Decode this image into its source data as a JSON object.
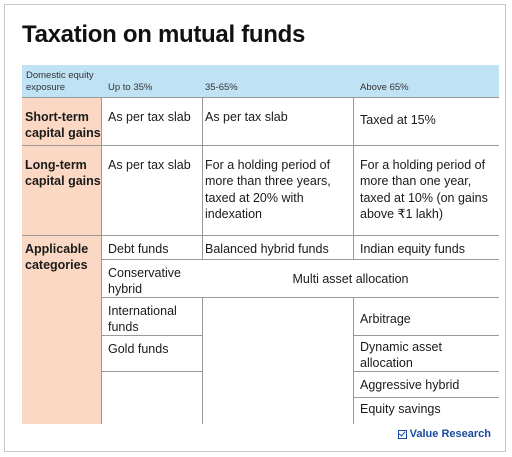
{
  "title": "Taxation on mutual funds",
  "header": {
    "col0": "Domestic equity exposure",
    "col1": "Up to 35%",
    "col2": "35-65%",
    "col3": "Above 65%"
  },
  "rows": {
    "short_term": {
      "label": "Short-term capital gains",
      "c1": "As per tax slab",
      "c2": "As per tax slab",
      "c3": "Taxed at 15%"
    },
    "long_term": {
      "label": "Long-term capital gains",
      "c1": "As per tax slab",
      "c2": "For a holding period of more than three years, taxed at 20% with indexation",
      "c3": "For a holding period of more than one year, taxed at 10% (on gains above ₹1 lakh)"
    },
    "categories": {
      "label": "Applicable categories",
      "debt": "Debt funds",
      "balanced": "Balanced hybrid funds",
      "indian_equity": "Indian equity funds",
      "conservative": "Conservative hybrid",
      "multi_asset": "Multi asset allocation",
      "international": "International funds",
      "arbitrage": "Arbitrage",
      "gold": "Gold funds",
      "dynamic": "Dynamic asset allocation",
      "aggressive": "Aggressive hybrid",
      "equity_savings": "Equity savings"
    }
  },
  "brand": "Value Research",
  "colors": {
    "header_bg": "#bfe2f5",
    "rowhead_bg": "#fad8c3",
    "brand": "#1a4aa0"
  }
}
